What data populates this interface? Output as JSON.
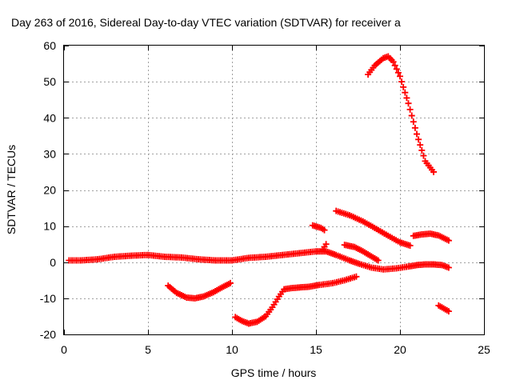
{
  "chart_data": {
    "type": "scatter",
    "title": "Day 263 of 2016, Sidereal Day-to-day VTEC variation (SDTVAR) for receiver a",
    "xlabel": "GPS time / hours",
    "ylabel": "SDTVAR / TECUs",
    "xlim": [
      0,
      25
    ],
    "ylim": [
      -20,
      60
    ],
    "xticks": [
      "0",
      "5",
      "10",
      "15",
      "20",
      "25"
    ],
    "yticks": [
      "-20",
      "-10",
      "0",
      "10",
      "20",
      "30",
      "40",
      "50",
      "60"
    ],
    "grid": true,
    "marker": "plus",
    "color": "#ff0000",
    "series": [
      {
        "x": [
          0.3,
          1,
          2,
          3,
          4,
          5,
          6,
          7,
          8,
          9,
          10,
          11,
          12,
          13,
          14,
          15,
          15.6,
          16.2,
          17,
          17.6,
          18.3,
          19,
          19.8,
          20.5,
          21,
          21.5,
          22,
          22.5,
          22.9
        ],
        "y": [
          0.5,
          0.5,
          0.8,
          1.5,
          1.8,
          2,
          1.5,
          1.3,
          0.8,
          0.5,
          0.5,
          1.2,
          1.5,
          2,
          2.5,
          3,
          3,
          2,
          0.5,
          -0.5,
          -1.5,
          -2,
          -1.7,
          -1.2,
          -0.8,
          -0.6,
          -0.6,
          -0.8,
          -1.5
        ]
      },
      {
        "x": [
          6.2,
          6.7,
          7.3,
          7.8,
          8.3,
          8.9,
          9.4,
          9.9
        ],
        "y": [
          -6.5,
          -8.5,
          -9.8,
          -10,
          -9.5,
          -8.3,
          -7,
          -5.8
        ]
      },
      {
        "x": [
          10.2,
          10.6,
          11,
          11.5,
          12,
          12.4,
          12.8,
          13.1,
          13.5,
          14,
          14.6,
          15.2,
          16,
          16.7,
          17.4
        ],
        "y": [
          -15.2,
          -16.3,
          -17,
          -16.5,
          -15,
          -12.5,
          -9.5,
          -7.5,
          -7.2,
          -7,
          -6.8,
          -6.3,
          -5.8,
          -5,
          -4
        ]
      },
      {
        "x": [
          14.8,
          15.3,
          15.5
        ],
        "y": [
          10.2,
          9.5,
          8.9
        ]
      },
      {
        "x": [
          15.4,
          15.6
        ],
        "y": [
          3.5,
          5
        ]
      },
      {
        "x": [
          16.2,
          17,
          17.8,
          18.6,
          19.3,
          20,
          20.6
        ],
        "y": [
          14.2,
          13,
          11.3,
          9.2,
          7.3,
          5.5,
          4.6
        ]
      },
      {
        "x": [
          16.7,
          17.3,
          17.8,
          18.3,
          18.7
        ],
        "y": [
          4.8,
          4.2,
          3,
          1.6,
          0.5
        ]
      },
      {
        "x": [
          20.8,
          21.3,
          21.8,
          22.3,
          22.9
        ],
        "y": [
          7.3,
          7.7,
          7.9,
          7.4,
          6
        ]
      },
      {
        "x": [
          18.1,
          18.5,
          19,
          19.3,
          19.6,
          20,
          20.5,
          21,
          21.5,
          22
        ],
        "y": [
          52,
          54.5,
          56.5,
          57,
          55.5,
          51.5,
          44,
          35.5,
          28,
          25
        ]
      },
      {
        "x": [
          22.3,
          22.6,
          22.9
        ],
        "y": [
          -12,
          -12.8,
          -13.6
        ]
      }
    ]
  }
}
